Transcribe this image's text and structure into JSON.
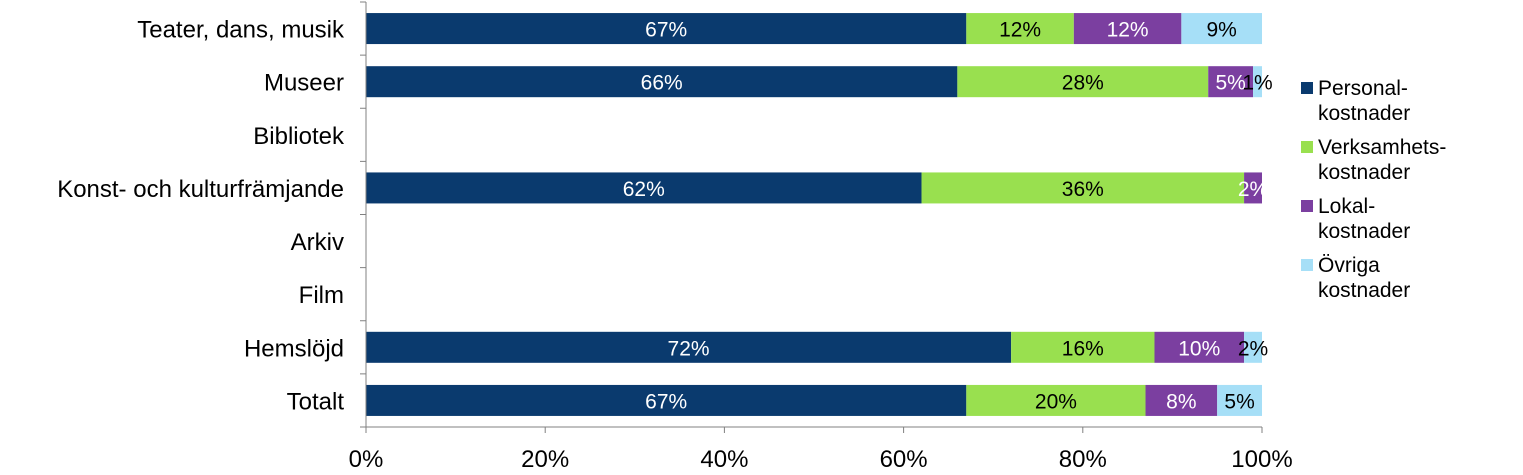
{
  "chart_data": {
    "type": "bar",
    "orientation": "horizontal",
    "stacked": "percent",
    "categories": [
      "Teater, dans, musik",
      "Museer",
      "Bibliotek",
      "Konst- och kulturfrämjande",
      "Arkiv",
      "Film",
      "Hemslöjd",
      "Totalt"
    ],
    "series": [
      {
        "name": "Personal-\nkostnader",
        "color": "#0a3a6e",
        "values": [
          67,
          66,
          null,
          62,
          null,
          null,
          72,
          67
        ],
        "labels": [
          "67%",
          "66%",
          "",
          "62%",
          "",
          "",
          "72%",
          "67%"
        ],
        "label_color": "#ffffff"
      },
      {
        "name": "Verksamhets-\nkostnader",
        "color": "#99e04f",
        "values": [
          12,
          28,
          null,
          36,
          null,
          null,
          16,
          20
        ],
        "labels": [
          "12%",
          "28%",
          "",
          "36%",
          "",
          "",
          "16%",
          "20%"
        ],
        "label_color": "#000000"
      },
      {
        "name": "Lokal-\nkostnader",
        "color": "#7b3fa0",
        "values": [
          12,
          5,
          null,
          2,
          null,
          null,
          10,
          8
        ],
        "labels": [
          "12%",
          "5%",
          "",
          "2%",
          "",
          "",
          "10%",
          "8%"
        ],
        "label_color": "#ffffff"
      },
      {
        "name": "Övriga\nkostnader",
        "color": "#a6dff7",
        "values": [
          9,
          1,
          null,
          0,
          null,
          null,
          2,
          5
        ],
        "labels": [
          "9%",
          "1%",
          "",
          "",
          "",
          "",
          "2%",
          "5%"
        ],
        "label_color": "#000000"
      }
    ],
    "xlim": [
      0,
      100
    ],
    "xticks": [
      "0%",
      "20%",
      "40%",
      "60%",
      "80%",
      "100%"
    ],
    "grid": false,
    "legend_position": "right"
  }
}
